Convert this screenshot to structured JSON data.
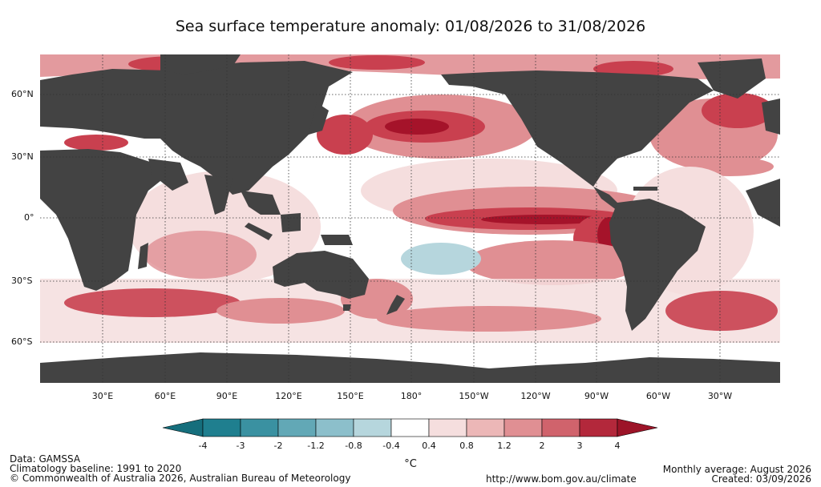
{
  "title": "Sea surface temperature anomaly: 01/08/2026 to 31/08/2026",
  "lat_labels": [
    "60°N",
    "30°N",
    "0°",
    "30°S",
    "60°S"
  ],
  "lon_labels": [
    "30°E",
    "60°E",
    "90°E",
    "120°E",
    "150°E",
    "180°",
    "150°W",
    "120°W",
    "90°W",
    "60°W",
    "30°W"
  ],
  "colorbar": {
    "ticks": [
      "-4",
      "-3",
      "-2",
      "-1.2",
      "-0.8",
      "-0.4",
      "0.4",
      "0.8",
      "1.2",
      "2",
      "3",
      "4"
    ],
    "colors": [
      "#1f7f8f",
      "#3a91a1",
      "#62a8b6",
      "#8cbfcb",
      "#b6d6dd",
      "#ffffff",
      "#f5dede",
      "#ecb7b7",
      "#e08f93",
      "#d0636c",
      "#b3283b"
    ],
    "under_color": "#156e7c",
    "over_color": "#9c1428",
    "unit": "°C"
  },
  "footer": {
    "data": "Data: GAMSSA",
    "baseline": "Climatology baseline: 1991 to 2020",
    "copyright": "© Commonwealth of Australia 2026, Australian Bureau of Meteorology",
    "url": "http://www.bom.gov.au/climate",
    "monthly": "Monthly average: August 2026",
    "created": "Created: 03/09/2026"
  },
  "colors": {
    "land": "#434343",
    "ocean": "#ffffff",
    "warm_light": "#f5dede",
    "warm_mid": "#e08f93",
    "warm_strong": "#c9404f",
    "warm_extreme": "#a5132a",
    "cool_light": "#b6d6dd",
    "grid": "#333333"
  }
}
